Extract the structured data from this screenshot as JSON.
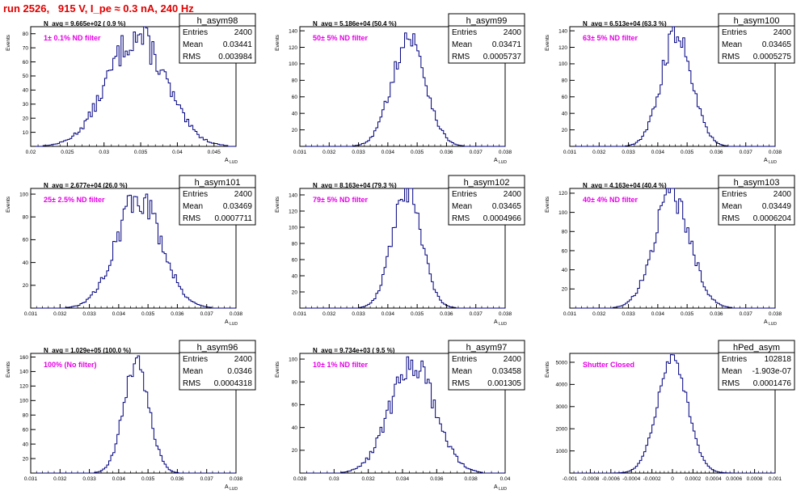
{
  "header": {
    "title": "run 2526,   915 V, I_pe ≈ 0.3 nA, 240 Hz"
  },
  "chart_data": [
    {
      "type": "histogram",
      "name": "h_asym98",
      "navg": "N_avg = 9.665e+02 ( 0.9 %)",
      "filter": "1± 0.1% ND filter",
      "stats": {
        "Entries": "2400",
        "Mean": "0.03441",
        "RMS": "0.003984"
      },
      "xlabel": "A",
      "xlabel_sub": "LUD",
      "ylabel": "Events",
      "xlim": [
        0.02,
        0.048
      ],
      "ylim": [
        0,
        85
      ],
      "xticks": [
        "0.02",
        "0.025",
        "0.03",
        "0.035",
        "0.04",
        "0.045"
      ],
      "xtick_values": [
        0.02,
        0.025,
        0.03,
        0.035,
        0.04,
        0.045
      ],
      "yticks": [
        0,
        10,
        20,
        30,
        40,
        50,
        60,
        70,
        80
      ],
      "mean": 0.03441,
      "sigma": 0.003984,
      "peak": 78,
      "entries": 2400
    },
    {
      "type": "histogram",
      "name": "h_asym99",
      "navg": "N_avg = 5.186e+04 (50.4 %)",
      "filter": "50± 5% ND filter",
      "stats": {
        "Entries": "2400",
        "Mean": "0.03471",
        "RMS": "0.0005737"
      },
      "xlabel": "A",
      "xlabel_sub": "LUD",
      "ylabel": "Events",
      "xlim": [
        0.031,
        0.038
      ],
      "ylim": [
        0,
        145
      ],
      "xticks": [
        "0.031",
        "0.032",
        "0.033",
        "0.034",
        "0.035",
        "0.036",
        "0.037",
        "0.038"
      ],
      "xtick_values": [
        0.031,
        0.032,
        0.033,
        0.034,
        0.035,
        0.036,
        0.037,
        0.038
      ],
      "yticks": [
        0,
        20,
        40,
        60,
        80,
        100,
        120,
        140
      ],
      "mean": 0.03471,
      "sigma": 0.0005737,
      "peak": 132,
      "entries": 2400
    },
    {
      "type": "histogram",
      "name": "h_asym100",
      "navg": "N_avg = 6.513e+04 (63.3 %)",
      "filter": "63± 5% ND filter",
      "stats": {
        "Entries": "2400",
        "Mean": "0.03465",
        "RMS": "0.0005275"
      },
      "xlabel": "A",
      "xlabel_sub": "LUD",
      "ylabel": "Events",
      "xlim": [
        0.031,
        0.038
      ],
      "ylim": [
        0,
        145
      ],
      "xticks": [
        "0.031",
        "0.032",
        "0.033",
        "0.034",
        "0.035",
        "0.036",
        "0.037",
        "0.038"
      ],
      "xtick_values": [
        0.031,
        0.032,
        0.033,
        0.034,
        0.035,
        0.036,
        0.037,
        0.038
      ],
      "yticks": [
        0,
        20,
        40,
        60,
        80,
        100,
        120,
        140
      ],
      "mean": 0.03465,
      "sigma": 0.0005275,
      "peak": 138,
      "entries": 2400
    },
    {
      "type": "histogram",
      "name": "h_asym101",
      "navg": "N_avg = 2.677e+04 (26.0 %)",
      "filter": "25± 2.5% ND filter",
      "stats": {
        "Entries": "2400",
        "Mean": "0.03469",
        "RMS": "0.0007711"
      },
      "xlabel": "A",
      "xlabel_sub": "LUD",
      "ylabel": "Events",
      "xlim": [
        0.031,
        0.038
      ],
      "ylim": [
        0,
        105
      ],
      "xticks": [
        "0.031",
        "0.032",
        "0.033",
        "0.034",
        "0.035",
        "0.036",
        "0.037",
        "0.038"
      ],
      "xtick_values": [
        0.031,
        0.032,
        0.033,
        0.034,
        0.035,
        0.036,
        0.037,
        0.038
      ],
      "yticks": [
        0,
        20,
        40,
        60,
        80,
        100
      ],
      "mean": 0.03469,
      "sigma": 0.0007711,
      "peak": 97,
      "entries": 2400
    },
    {
      "type": "histogram",
      "name": "h_asym102",
      "navg": "N_avg = 8.163e+04 (79.3 %)",
      "filter": "79± 5% ND filter",
      "stats": {
        "Entries": "2400",
        "Mean": "0.03465",
        "RMS": "0.0004966"
      },
      "xlabel": "A",
      "xlabel_sub": "LUD",
      "ylabel": "Events",
      "xlim": [
        0.031,
        0.038
      ],
      "ylim": [
        0,
        148
      ],
      "xticks": [
        "0.031",
        "0.032",
        "0.033",
        "0.034",
        "0.035",
        "0.036",
        "0.037",
        "0.038"
      ],
      "xtick_values": [
        0.031,
        0.032,
        0.033,
        0.034,
        0.035,
        0.036,
        0.037,
        0.038
      ],
      "yticks": [
        0,
        20,
        40,
        60,
        80,
        100,
        120,
        140
      ],
      "mean": 0.03465,
      "sigma": 0.0004966,
      "peak": 144,
      "entries": 2400
    },
    {
      "type": "histogram",
      "name": "h_asym103",
      "navg": "N_avg = 4.163e+04 (40.4 %)",
      "filter": "40± 4% ND filter",
      "stats": {
        "Entries": "2400",
        "Mean": "0.03449",
        "RMS": "0.0006204"
      },
      "xlabel": "A",
      "xlabel_sub": "LUD",
      "ylabel": "Events",
      "xlim": [
        0.031,
        0.038
      ],
      "ylim": [
        0,
        125
      ],
      "xticks": [
        "0.031",
        "0.032",
        "0.033",
        "0.034",
        "0.035",
        "0.036",
        "0.037",
        "0.038"
      ],
      "xtick_values": [
        0.031,
        0.032,
        0.033,
        0.034,
        0.035,
        0.036,
        0.037,
        0.038
      ],
      "yticks": [
        0,
        20,
        40,
        60,
        80,
        100,
        120
      ],
      "mean": 0.03449,
      "sigma": 0.0006204,
      "peak": 118,
      "entries": 2400
    },
    {
      "type": "histogram",
      "name": "h_asym96",
      "navg": "N_avg = 1.029e+05 (100.0 %)",
      "filter": "100% (No filter)",
      "stats": {
        "Entries": "2400",
        "Mean": "0.0346",
        "RMS": "0.0004318"
      },
      "xlabel": "A",
      "xlabel_sub": "LUD",
      "ylabel": "Events",
      "xlim": [
        0.031,
        0.038
      ],
      "ylim": [
        0,
        165
      ],
      "xticks": [
        "0.031",
        "0.032",
        "0.033",
        "0.034",
        "0.035",
        "0.036",
        "0.037",
        "0.038"
      ],
      "xtick_values": [
        0.031,
        0.032,
        0.033,
        0.034,
        0.035,
        0.036,
        0.037,
        0.038
      ],
      "yticks": [
        0,
        20,
        40,
        60,
        80,
        100,
        120,
        140,
        160
      ],
      "mean": 0.0346,
      "sigma": 0.0004318,
      "peak": 150,
      "entries": 2400
    },
    {
      "type": "histogram",
      "name": "h_asym97",
      "navg": "N_avg = 9.734e+03 ( 9.5 %)",
      "filter": "10± 1% ND filter",
      "stats": {
        "Entries": "2400",
        "Mean": "0.03458",
        "RMS": "0.001305"
      },
      "xlabel": "A",
      "xlabel_sub": "LUD",
      "ylabel": "Events",
      "xlim": [
        0.028,
        0.04
      ],
      "ylim": [
        0,
        105
      ],
      "xticks": [
        "0.028",
        "0.03",
        "0.032",
        "0.034",
        "0.036",
        "0.038",
        "0.04"
      ],
      "xtick_values": [
        0.028,
        0.03,
        0.032,
        0.034,
        0.036,
        0.038,
        0.04
      ],
      "yticks": [
        0,
        20,
        40,
        60,
        80,
        100
      ],
      "mean": 0.03458,
      "sigma": 0.001305,
      "peak": 96,
      "entries": 2400
    },
    {
      "type": "histogram",
      "name": "hPed_asym",
      "navg": "",
      "filter": "Shutter Closed",
      "stats": {
        "Entries": "102818",
        "Mean": "-1.903e-07",
        "RMS": "0.0001476"
      },
      "xlabel": "",
      "xlabel_sub": "",
      "ylabel": "Events",
      "xlim": [
        -0.001,
        0.001
      ],
      "ylim": [
        0,
        5400
      ],
      "xticks": [
        "-0.001",
        "-0.0008",
        "-0.0006",
        "-0.0004",
        "-0.0002",
        "0",
        "0.0002",
        "0.0004",
        "0.0006",
        "0.0008",
        "0.001"
      ],
      "xtick_values": [
        -0.001,
        -0.0008,
        -0.0006,
        -0.0004,
        -0.0002,
        0,
        0.0002,
        0.0004,
        0.0006,
        0.0008,
        0.001
      ],
      "yticks": [
        0,
        1000,
        2000,
        3000,
        4000,
        5000
      ],
      "mean": 0,
      "sigma": 0.0001476,
      "peak": 5150,
      "entries": 102818
    }
  ]
}
